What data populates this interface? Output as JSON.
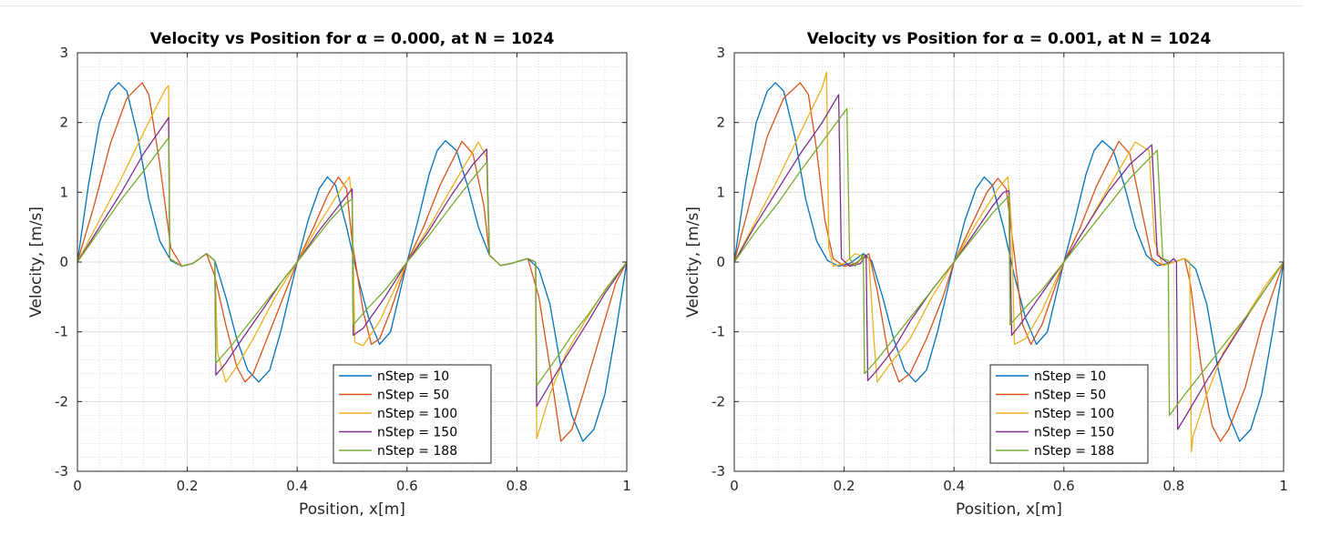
{
  "chart_data": [
    {
      "type": "line",
      "title": "Velocity vs Position for α = 0.000, at N = 1024",
      "xlabel": "Position, x[m]",
      "ylabel": "Velocity, [m/s]",
      "xlim": [
        0,
        1
      ],
      "ylim": [
        -3,
        3
      ],
      "xticks": [
        "0",
        "0.2",
        "0.4",
        "0.6",
        "0.8",
        "1"
      ],
      "yticks": [
        "-3",
        "-2",
        "-1",
        "0",
        "1",
        "2",
        "3"
      ],
      "grid": true,
      "legend": "bottom-right",
      "series": [
        {
          "name": "nStep = 10",
          "color": "#0072BD",
          "x": [
            0,
            0.02,
            0.04,
            0.06,
            0.075,
            0.09,
            0.11,
            0.13,
            0.15,
            0.17,
            0.19,
            0.21,
            0.235,
            0.25,
            0.27,
            0.29,
            0.31,
            0.33,
            0.35,
            0.37,
            0.4,
            0.42,
            0.44,
            0.455,
            0.47,
            0.49,
            0.51,
            0.53,
            0.55,
            0.57,
            0.6,
            0.62,
            0.64,
            0.655,
            0.67,
            0.69,
            0.71,
            0.73,
            0.75,
            0.77,
            0.79,
            0.82,
            0.84,
            0.86,
            0.88,
            0.9,
            0.92,
            0.94,
            0.96,
            0.98,
            1.0
          ],
          "y": [
            0,
            1.1,
            2.0,
            2.45,
            2.57,
            2.45,
            1.8,
            0.9,
            0.3,
            0.02,
            -0.06,
            -0.02,
            0.12,
            0.02,
            -0.5,
            -1.1,
            -1.55,
            -1.72,
            -1.55,
            -1.0,
            0,
            0.6,
            1.05,
            1.22,
            1.1,
            0.5,
            -0.2,
            -0.8,
            -1.18,
            -1.0,
            0,
            0.6,
            1.25,
            1.6,
            1.74,
            1.6,
            1.1,
            0.5,
            0.1,
            -0.05,
            -0.02,
            0.05,
            -0.1,
            -0.6,
            -1.5,
            -2.2,
            -2.57,
            -2.4,
            -1.9,
            -1.0,
            0
          ]
        },
        {
          "name": "nStep = 50",
          "color": "#D95319",
          "x": [
            0,
            0.03,
            0.06,
            0.09,
            0.118,
            0.13,
            0.15,
            0.17,
            0.19,
            0.21,
            0.235,
            0.25,
            0.27,
            0.29,
            0.305,
            0.32,
            0.34,
            0.37,
            0.4,
            0.43,
            0.455,
            0.475,
            0.49,
            0.5,
            0.52,
            0.535,
            0.55,
            0.57,
            0.6,
            0.63,
            0.66,
            0.7,
            0.72,
            0.74,
            0.75,
            0.77,
            0.79,
            0.82,
            0.84,
            0.86,
            0.88,
            0.9,
            0.92,
            0.95,
            0.98,
            1.0
          ],
          "y": [
            0,
            0.8,
            1.7,
            2.35,
            2.57,
            2.4,
            1.4,
            0.2,
            -0.06,
            -0.02,
            0.12,
            -0.2,
            -0.9,
            -1.5,
            -1.72,
            -1.6,
            -1.2,
            -0.6,
            0,
            0.5,
            0.95,
            1.22,
            1.05,
            0.3,
            -0.7,
            -1.18,
            -1.1,
            -0.7,
            0,
            0.5,
            1.1,
            1.73,
            1.55,
            0.8,
            0.1,
            -0.05,
            -0.02,
            0.05,
            -0.5,
            -1.5,
            -2.57,
            -2.4,
            -1.9,
            -1.1,
            -0.3,
            0
          ]
        },
        {
          "name": "nStep = 100",
          "color": "#EDB120",
          "x": [
            0,
            0.04,
            0.08,
            0.12,
            0.16,
            0.166,
            0.168,
            0.19,
            0.21,
            0.235,
            0.25,
            0.255,
            0.27,
            0.29,
            0.32,
            0.36,
            0.4,
            0.44,
            0.48,
            0.495,
            0.5,
            0.505,
            0.52,
            0.55,
            0.6,
            0.64,
            0.68,
            0.73,
            0.745,
            0.75,
            0.77,
            0.79,
            0.82,
            0.834,
            0.836,
            0.86,
            0.89,
            0.92,
            0.96,
            1.0
          ],
          "y": [
            0,
            0.6,
            1.2,
            1.85,
            2.48,
            2.53,
            0.05,
            -0.06,
            -0.02,
            0.12,
            0.02,
            -1.3,
            -1.72,
            -1.5,
            -1.1,
            -0.5,
            0,
            0.55,
            1.05,
            1.22,
            0.9,
            -1.15,
            -1.2,
            -0.85,
            0,
            0.5,
            1.05,
            1.72,
            1.5,
            0.1,
            -0.05,
            -0.02,
            0.05,
            0,
            -2.53,
            -1.9,
            -1.3,
            -0.9,
            -0.4,
            0
          ]
        },
        {
          "name": "nStep = 150",
          "color": "#7E2F8E",
          "x": [
            0,
            0.04,
            0.08,
            0.12,
            0.16,
            0.166,
            0.168,
            0.19,
            0.21,
            0.235,
            0.25,
            0.252,
            0.27,
            0.3,
            0.34,
            0.37,
            0.4,
            0.44,
            0.47,
            0.49,
            0.5,
            0.502,
            0.52,
            0.56,
            0.6,
            0.64,
            0.68,
            0.72,
            0.745,
            0.75,
            0.77,
            0.79,
            0.82,
            0.834,
            0.836,
            0.86,
            0.89,
            0.93,
            0.96,
            1.0
          ],
          "y": [
            0,
            0.5,
            1.0,
            1.55,
            2.0,
            2.07,
            0.05,
            -0.06,
            -0.02,
            0.12,
            0.02,
            -1.62,
            -1.45,
            -1.1,
            -0.65,
            -0.3,
            0,
            0.45,
            0.75,
            0.95,
            1.05,
            -1.05,
            -0.95,
            -0.5,
            0,
            0.45,
            0.95,
            1.4,
            1.62,
            0.1,
            -0.05,
            -0.02,
            0.05,
            0,
            -2.07,
            -1.75,
            -1.35,
            -0.85,
            -0.45,
            0
          ]
        },
        {
          "name": "nStep = 188",
          "color": "#77AC30",
          "x": [
            0,
            0.04,
            0.08,
            0.12,
            0.16,
            0.166,
            0.168,
            0.19,
            0.21,
            0.235,
            0.25,
            0.252,
            0.28,
            0.31,
            0.34,
            0.37,
            0.4,
            0.43,
            0.46,
            0.49,
            0.5,
            0.502,
            0.53,
            0.56,
            0.6,
            0.64,
            0.68,
            0.72,
            0.745,
            0.75,
            0.77,
            0.79,
            0.82,
            0.834,
            0.836,
            0.87,
            0.9,
            0.93,
            0.97,
            1.0
          ],
          "y": [
            0,
            0.45,
            0.9,
            1.3,
            1.72,
            1.78,
            0.05,
            -0.06,
            -0.02,
            0.12,
            0.02,
            -1.45,
            -1.2,
            -0.9,
            -0.6,
            -0.3,
            0,
            0.3,
            0.6,
            0.85,
            0.9,
            -0.9,
            -0.65,
            -0.4,
            0,
            0.38,
            0.8,
            1.2,
            1.43,
            0.1,
            -0.05,
            -0.02,
            0.05,
            0,
            -1.77,
            -1.4,
            -1.05,
            -0.75,
            -0.3,
            0
          ]
        }
      ]
    },
    {
      "type": "line",
      "title": "Velocity vs Position for α = 0.001, at N = 1024",
      "xlabel": "Position, x[m]",
      "ylabel": "Velocity, [m/s]",
      "xlim": [
        0,
        1
      ],
      "ylim": [
        -3,
        3
      ],
      "xticks": [
        "0",
        "0.2",
        "0.4",
        "0.6",
        "0.8",
        "1"
      ],
      "yticks": [
        "-3",
        "-2",
        "-1",
        "0",
        "1",
        "2",
        "3"
      ],
      "grid": true,
      "legend": "bottom-right",
      "series": [
        {
          "name": "nStep = 10",
          "color": "#0072BD",
          "x": [
            0,
            0.02,
            0.04,
            0.06,
            0.075,
            0.09,
            0.11,
            0.13,
            0.15,
            0.17,
            0.19,
            0.21,
            0.235,
            0.25,
            0.27,
            0.29,
            0.31,
            0.33,
            0.35,
            0.37,
            0.4,
            0.42,
            0.44,
            0.455,
            0.47,
            0.49,
            0.51,
            0.53,
            0.55,
            0.57,
            0.6,
            0.62,
            0.64,
            0.655,
            0.67,
            0.69,
            0.71,
            0.73,
            0.75,
            0.77,
            0.79,
            0.82,
            0.84,
            0.86,
            0.88,
            0.9,
            0.92,
            0.94,
            0.96,
            0.98,
            1.0
          ],
          "y": [
            0,
            1.1,
            2.0,
            2.45,
            2.57,
            2.45,
            1.8,
            0.9,
            0.3,
            0.02,
            -0.06,
            -0.02,
            0.12,
            0.02,
            -0.5,
            -1.1,
            -1.55,
            -1.72,
            -1.55,
            -1.0,
            0,
            0.6,
            1.05,
            1.22,
            1.1,
            0.5,
            -0.2,
            -0.8,
            -1.18,
            -1.0,
            0,
            0.6,
            1.25,
            1.6,
            1.74,
            1.6,
            1.1,
            0.5,
            0.1,
            -0.05,
            -0.02,
            0.05,
            -0.1,
            -0.6,
            -1.5,
            -2.2,
            -2.57,
            -2.4,
            -1.9,
            -1.0,
            0
          ]
        },
        {
          "name": "nStep = 50",
          "color": "#D95319",
          "x": [
            0,
            0.03,
            0.06,
            0.09,
            0.12,
            0.135,
            0.15,
            0.165,
            0.18,
            0.2,
            0.22,
            0.245,
            0.26,
            0.28,
            0.3,
            0.32,
            0.35,
            0.38,
            0.4,
            0.43,
            0.46,
            0.48,
            0.495,
            0.51,
            0.525,
            0.54,
            0.56,
            0.6,
            0.63,
            0.66,
            0.7,
            0.72,
            0.74,
            0.76,
            0.78,
            0.8,
            0.82,
            0.83,
            0.85,
            0.87,
            0.885,
            0.9,
            0.93,
            0.96,
            1.0
          ],
          "y": [
            0,
            0.9,
            1.8,
            2.35,
            2.57,
            2.4,
            1.6,
            0.6,
            0.05,
            -0.06,
            -0.02,
            0.12,
            -0.4,
            -1.3,
            -1.72,
            -1.6,
            -1.1,
            -0.5,
            0,
            0.5,
            1.0,
            1.2,
            1.05,
            0.1,
            -0.9,
            -1.18,
            -0.9,
            0,
            0.5,
            1.1,
            1.73,
            1.55,
            0.8,
            0.05,
            -0.05,
            0.0,
            0.05,
            -0.3,
            -1.5,
            -2.35,
            -2.57,
            -2.4,
            -1.8,
            -0.9,
            0
          ]
        },
        {
          "name": "nStep = 100",
          "color": "#EDB120",
          "x": [
            0,
            0.04,
            0.08,
            0.12,
            0.16,
            0.168,
            0.172,
            0.18,
            0.2,
            0.22,
            0.245,
            0.255,
            0.26,
            0.28,
            0.32,
            0.36,
            0.4,
            0.44,
            0.48,
            0.498,
            0.505,
            0.51,
            0.53,
            0.56,
            0.6,
            0.64,
            0.68,
            0.73,
            0.755,
            0.765,
            0.78,
            0.8,
            0.82,
            0.829,
            0.832,
            0.835,
            0.86,
            0.89,
            0.93,
            0.97,
            1.0
          ],
          "y": [
            0,
            0.6,
            1.2,
            1.85,
            2.5,
            2.72,
            0.2,
            -0.06,
            -0.02,
            0.12,
            0.05,
            -1.2,
            -1.72,
            -1.5,
            -1.1,
            -0.5,
            0,
            0.55,
            1.05,
            1.22,
            0.5,
            -1.18,
            -1.1,
            -0.7,
            0,
            0.5,
            1.05,
            1.72,
            1.6,
            0.3,
            -0.05,
            0.0,
            0.05,
            0.0,
            -2.72,
            -2.5,
            -1.9,
            -1.3,
            -0.8,
            -0.3,
            0
          ]
        },
        {
          "name": "nStep = 150",
          "color": "#7E2F8E",
          "x": [
            0,
            0.04,
            0.08,
            0.12,
            0.16,
            0.19,
            0.195,
            0.21,
            0.23,
            0.24,
            0.243,
            0.26,
            0.29,
            0.32,
            0.36,
            0.4,
            0.44,
            0.47,
            0.49,
            0.5,
            0.505,
            0.52,
            0.56,
            0.6,
            0.64,
            0.68,
            0.72,
            0.76,
            0.77,
            0.79,
            0.8,
            0.805,
            0.807,
            0.83,
            0.86,
            0.9,
            0.94,
            0.97,
            1.0
          ],
          "y": [
            0,
            0.55,
            1.05,
            1.55,
            2.0,
            2.4,
            0.05,
            -0.06,
            -0.02,
            0.1,
            -1.7,
            -1.55,
            -1.25,
            -0.85,
            -0.4,
            0,
            0.45,
            0.8,
            1.0,
            1.02,
            -1.05,
            -0.9,
            -0.45,
            0,
            0.5,
            1.0,
            1.4,
            1.68,
            0.1,
            -0.02,
            0.05,
            0,
            -2.4,
            -2.1,
            -1.7,
            -1.2,
            -0.7,
            -0.35,
            0
          ]
        },
        {
          "name": "nStep = 188",
          "color": "#77AC30",
          "x": [
            0,
            0.04,
            0.08,
            0.12,
            0.16,
            0.205,
            0.21,
            0.22,
            0.23,
            0.235,
            0.237,
            0.26,
            0.29,
            0.32,
            0.36,
            0.4,
            0.44,
            0.47,
            0.5,
            0.502,
            0.53,
            0.56,
            0.6,
            0.64,
            0.68,
            0.72,
            0.77,
            0.78,
            0.79,
            0.792,
            0.82,
            0.86,
            0.9,
            0.94,
            0.97,
            1.0
          ],
          "y": [
            0,
            0.45,
            0.85,
            1.3,
            1.72,
            2.2,
            0.05,
            -0.06,
            0.05,
            0.1,
            -1.6,
            -1.4,
            -1.1,
            -0.8,
            -0.4,
            0,
            0.4,
            0.7,
            0.95,
            -0.9,
            -0.65,
            -0.4,
            0,
            0.4,
            0.8,
            1.2,
            1.6,
            0.05,
            0.02,
            -2.2,
            -1.9,
            -1.5,
            -1.1,
            -0.7,
            -0.35,
            0
          ]
        }
      ]
    }
  ]
}
